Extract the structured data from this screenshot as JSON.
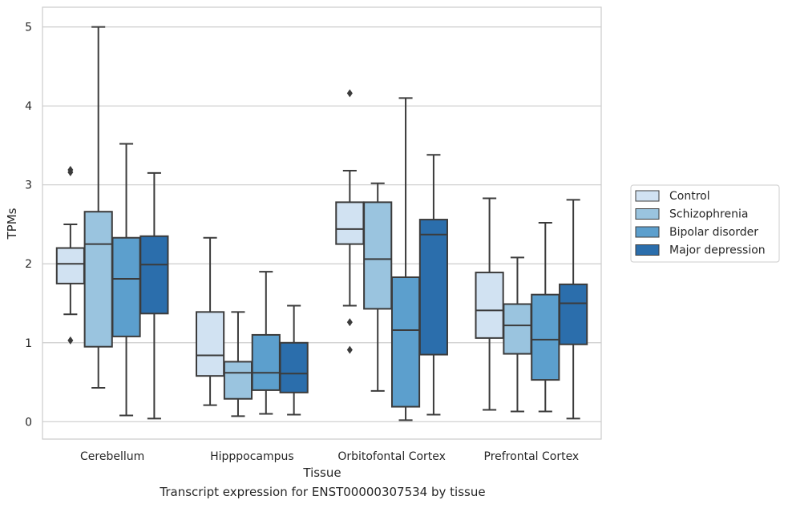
{
  "chart_data": {
    "type": "box",
    "caption": "Transcript expression for ENST00000307534 by tissue",
    "xlabel": "Tissue",
    "ylabel": "TPMs",
    "ylim": [
      -0.22,
      5.25
    ],
    "yticks": [
      0,
      1,
      2,
      3,
      4,
      5
    ],
    "grid": true,
    "legend_position": "right",
    "categories": [
      "Cerebellum",
      "Hipppocampus",
      "Orbitofontal Cortex",
      "Prefrontal Cortex"
    ],
    "series": [
      {
        "name": "Control",
        "color": "#d1e2f2",
        "boxes": [
          {
            "whislo": 1.36,
            "q1": 1.75,
            "med": 2.0,
            "q3": 2.2,
            "whishi": 2.5,
            "fliers": [
              3.16,
              3.19,
              1.03
            ]
          },
          {
            "whislo": 0.21,
            "q1": 0.58,
            "med": 0.84,
            "q3": 1.39,
            "whishi": 2.33,
            "fliers": []
          },
          {
            "whislo": 1.47,
            "q1": 2.25,
            "med": 2.44,
            "q3": 2.78,
            "whishi": 3.18,
            "fliers": [
              4.16,
              1.26,
              0.91
            ]
          },
          {
            "whislo": 0.15,
            "q1": 1.06,
            "med": 1.41,
            "q3": 1.89,
            "whishi": 2.83,
            "fliers": []
          }
        ]
      },
      {
        "name": "Schizophrenia",
        "color": "#9ac4df",
        "boxes": [
          {
            "whislo": 0.43,
            "q1": 0.95,
            "med": 2.25,
            "q3": 2.66,
            "whishi": 5.0,
            "fliers": []
          },
          {
            "whislo": 0.07,
            "q1": 0.29,
            "med": 0.62,
            "q3": 0.76,
            "whishi": 1.39,
            "fliers": []
          },
          {
            "whislo": 0.39,
            "q1": 1.43,
            "med": 2.06,
            "q3": 2.78,
            "whishi": 3.02,
            "fliers": []
          },
          {
            "whislo": 0.13,
            "q1": 0.86,
            "med": 1.22,
            "q3": 1.49,
            "whishi": 2.08,
            "fliers": []
          }
        ]
      },
      {
        "name": "Bipolar disorder",
        "color": "#5c9fcd",
        "boxes": [
          {
            "whislo": 0.08,
            "q1": 1.08,
            "med": 1.81,
            "q3": 2.33,
            "whishi": 3.52,
            "fliers": []
          },
          {
            "whislo": 0.1,
            "q1": 0.4,
            "med": 0.62,
            "q3": 1.1,
            "whishi": 1.9,
            "fliers": []
          },
          {
            "whislo": 0.02,
            "q1": 0.19,
            "med": 1.16,
            "q3": 1.83,
            "whishi": 4.1,
            "fliers": []
          },
          {
            "whislo": 0.13,
            "q1": 0.53,
            "med": 1.04,
            "q3": 1.61,
            "whishi": 2.52,
            "fliers": []
          }
        ]
      },
      {
        "name": "Major depression",
        "color": "#2b6eac",
        "boxes": [
          {
            "whislo": 0.04,
            "q1": 1.37,
            "med": 1.99,
            "q3": 2.35,
            "whishi": 3.15,
            "fliers": []
          },
          {
            "whislo": 0.09,
            "q1": 0.37,
            "med": 0.61,
            "q3": 1.0,
            "whishi": 1.47,
            "fliers": []
          },
          {
            "whislo": 0.09,
            "q1": 0.85,
            "med": 2.37,
            "q3": 2.56,
            "whishi": 3.38,
            "fliers": []
          },
          {
            "whislo": 0.04,
            "q1": 0.98,
            "med": 1.5,
            "q3": 1.74,
            "whishi": 2.81,
            "fliers": []
          }
        ]
      }
    ]
  }
}
